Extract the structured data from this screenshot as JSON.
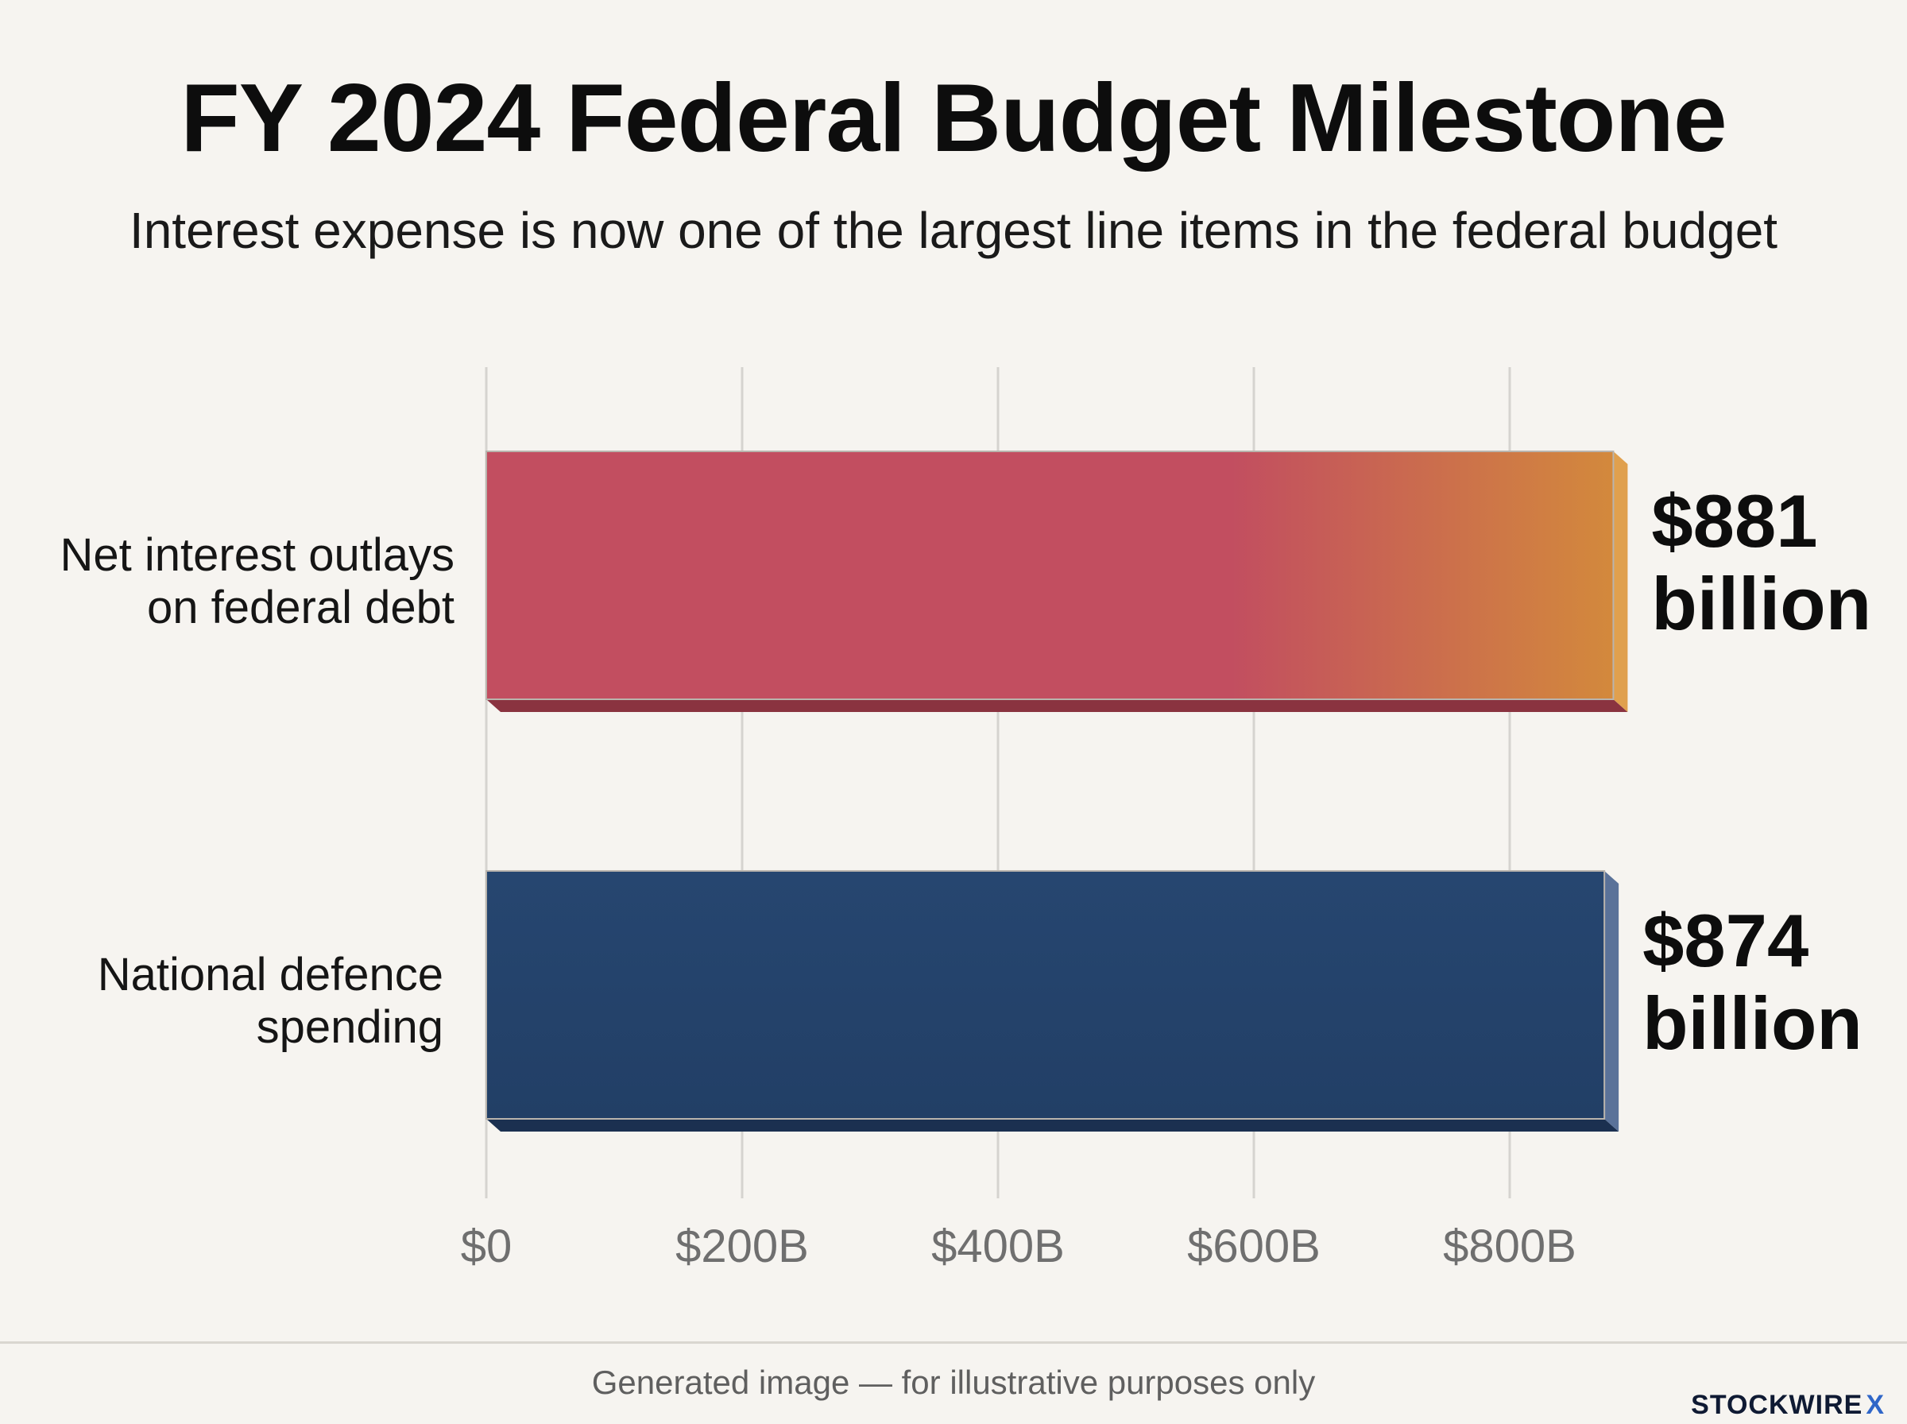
{
  "title": "FY 2024 Federal Budget Milestone",
  "subtitle": "Interest expense is now one of the largest line items in the federal budget",
  "footer": {
    "disclaimer": "Generated image — for illustrative purposes only",
    "brand": "STOCKWIRE",
    "brand_mark": "X"
  },
  "chart_data": {
    "type": "bar",
    "orientation": "horizontal",
    "title": "FY 2024 Federal Budget Milestone",
    "subtitle": "Interest expense is now one of the largest line items in the federal budget",
    "categories": [
      [
        "Net interest outlays",
        "on federal debt"
      ],
      [
        "National defence",
        "spending"
      ]
    ],
    "values": [
      881,
      874
    ],
    "value_labels": [
      [
        "$881",
        "billion"
      ],
      [
        "$874",
        "billion"
      ]
    ],
    "unit": "billion USD",
    "xlim": [
      0,
      900
    ],
    "xticks": [
      0,
      200,
      400,
      600,
      800
    ],
    "xtick_labels": [
      "$0",
      "$200B",
      "$400B",
      "$600B",
      "$800B"
    ],
    "grid": true,
    "legend": "none",
    "colors": {
      "interest_start": "#c24e60",
      "interest_end": "#d3893c",
      "defence": "#24436a",
      "grid": "#d5d3cf"
    }
  }
}
